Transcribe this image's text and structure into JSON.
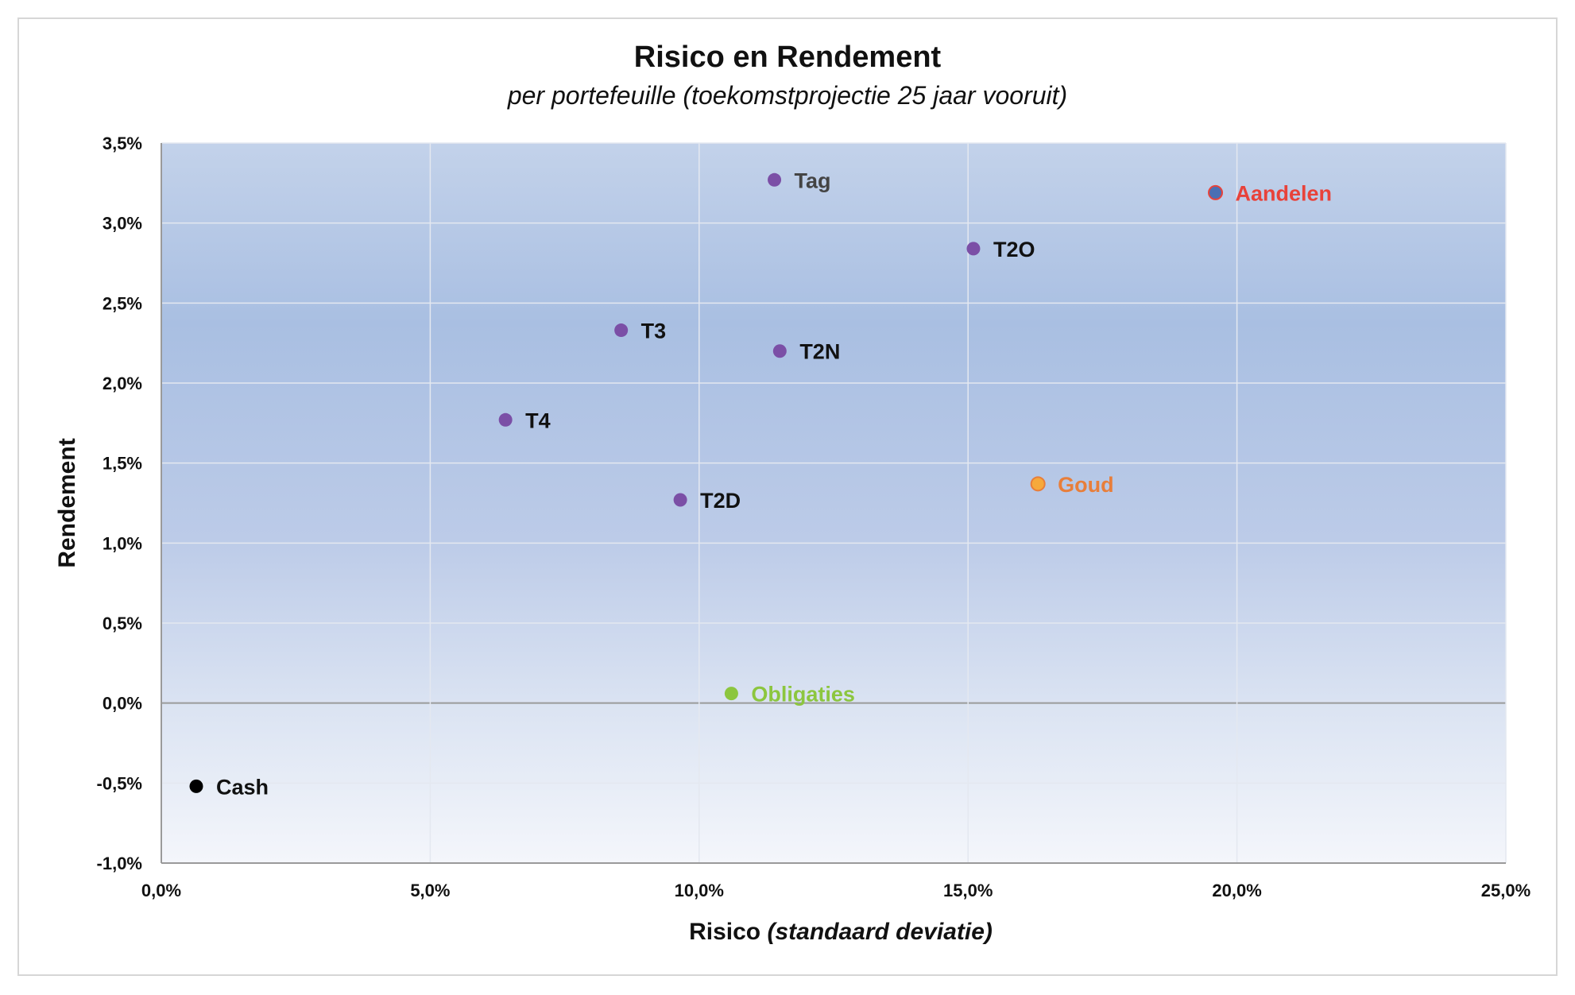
{
  "chart_data": {
    "type": "scatter",
    "title": "Risico en Rendement",
    "subtitle": "per portefeuille (toekomstprojectie 25 jaar vooruit)",
    "xlabel": "Risico",
    "xlabel_italic": "(standaard deviatie)",
    "ylabel": "Rendement",
    "xlim": [
      0,
      25
    ],
    "ylim": [
      -1,
      3.5
    ],
    "x_ticks": [
      0,
      5,
      10,
      15,
      20,
      25
    ],
    "x_tick_labels": [
      "0,0%",
      "5,0%",
      "10,0%",
      "15,0%",
      "20,0%",
      "25,0%"
    ],
    "y_ticks": [
      -1,
      -0.5,
      0,
      0.5,
      1,
      1.5,
      2,
      2.5,
      3,
      3.5
    ],
    "y_tick_labels": [
      "-1,0%",
      "-0,5%",
      "0,0%",
      "0,5%",
      "1,0%",
      "1,5%",
      "2,0%",
      "2,5%",
      "3,0%",
      "3,5%"
    ],
    "grid": true,
    "points": [
      {
        "label": "Tag",
        "x": 11.4,
        "y": 3.27,
        "color": "#7b4fa6",
        "label_color": "#444444"
      },
      {
        "label": "Aandelen",
        "x": 19.6,
        "y": 3.19,
        "color": "#4a6fb3",
        "label_color": "#e8423a",
        "edge_color": "#e8423a"
      },
      {
        "label": "T2O",
        "x": 15.1,
        "y": 2.84,
        "color": "#7b4fa6",
        "label_color": "#111111"
      },
      {
        "label": "T3",
        "x": 8.55,
        "y": 2.33,
        "color": "#7b4fa6",
        "label_color": "#111111"
      },
      {
        "label": "T2N",
        "x": 11.5,
        "y": 2.2,
        "color": "#7b4fa6",
        "label_color": "#111111"
      },
      {
        "label": "T4",
        "x": 6.4,
        "y": 1.77,
        "color": "#7b4fa6",
        "label_color": "#111111"
      },
      {
        "label": "Goud",
        "x": 16.3,
        "y": 1.37,
        "color": "#f6a93b",
        "label_color": "#e87e3a",
        "edge_color": "#e87e3a"
      },
      {
        "label": "T2D",
        "x": 9.65,
        "y": 1.27,
        "color": "#7b4fa6",
        "label_color": "#111111"
      },
      {
        "label": "Obligaties",
        "x": 10.6,
        "y": 0.06,
        "color": "#8cc63f",
        "label_color": "#8cc63f"
      },
      {
        "label": "Cash",
        "x": 0.65,
        "y": -0.52,
        "color": "#000000",
        "label_color": "#111111"
      }
    ]
  }
}
